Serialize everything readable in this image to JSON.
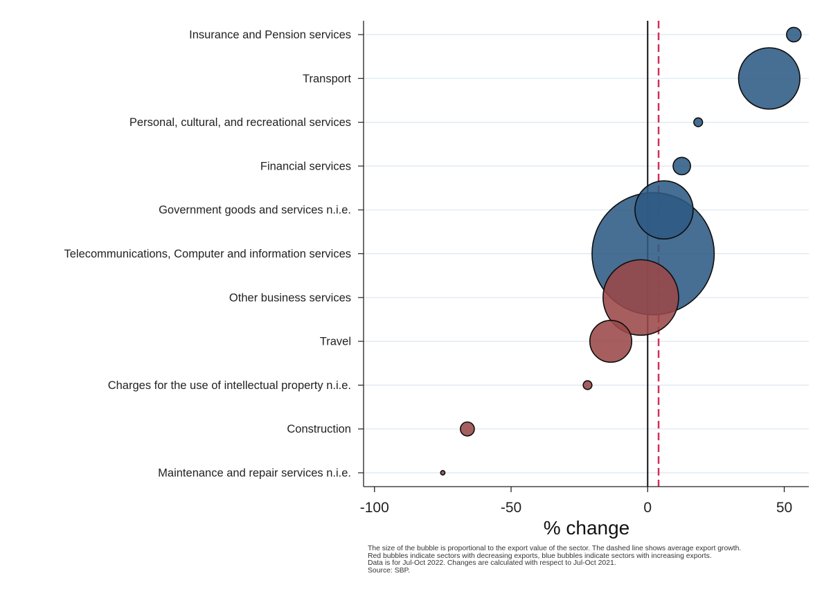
{
  "chart_data": {
    "type": "scatter",
    "subtype": "bubble",
    "xlabel": "% change",
    "xlim": [
      -104,
      59
    ],
    "xticks": [
      -100,
      -50,
      0,
      50
    ],
    "xtick_labels": [
      "-100",
      "-50",
      "0",
      "50"
    ],
    "reference_lines": {
      "zero": 0,
      "average_export_growth": 4
    },
    "grid": "horizontal",
    "colors": {
      "increasing": "#2e5a84",
      "decreasing": "#9a4848",
      "average_line": "#d0305a",
      "grid": "#dbe6ef"
    },
    "categories": [
      "Insurance and Pension services",
      "Transport",
      "Personal, cultural, and recreational services",
      "Financial services",
      "Government goods and services n.i.e.",
      "Telecommunications, Computer and information services",
      "Other business services",
      "Travel",
      "Charges for the use of intellectual property n.i.e.",
      "Construction",
      "Maintenance and repair services n.i.e."
    ],
    "x": [
      53.5,
      44.5,
      18.5,
      12.5,
      6,
      2,
      -2.5,
      -13.5,
      -22,
      -66,
      -75
    ],
    "size": [
      1.0,
      17.8,
      0.36,
      1.44,
      16.0,
      70.6,
      27.0,
      8.3,
      0.36,
      0.92,
      0.09
    ],
    "direction": [
      "increasing",
      "increasing",
      "increasing",
      "increasing",
      "increasing",
      "increasing",
      "decreasing",
      "decreasing",
      "decreasing",
      "decreasing",
      "decreasing"
    ]
  },
  "notes": [
    "The size of the bubble is proportional to the export value of the sector. The dashed line shows average export growth.",
    "Red bubbles indicate sectors with decreasing exports, blue bubbles indicate sectors with increasing exports.",
    "Data is for Jul-Oct 2022. Changes are calculated with respect to Jul-Oct 2021.",
    "Source: SBP."
  ]
}
